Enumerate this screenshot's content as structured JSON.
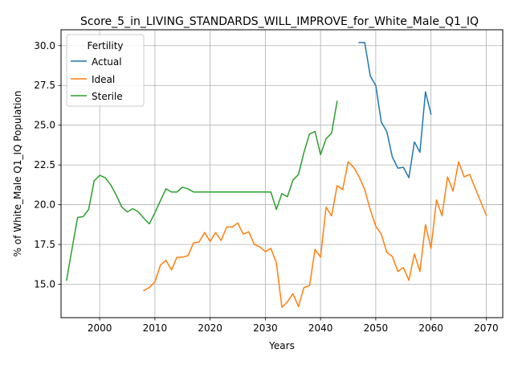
{
  "chart_data": {
    "type": "line",
    "title": "Score_5_in_LIVING_STANDARDS_WILL_IMPROVE_for_White_Male_Q1_IQ",
    "xlabel": "Years",
    "ylabel": "% of White_Male Q1_IQ Population",
    "xlim": [
      1993,
      2073
    ],
    "ylim": [
      12.9,
      31.0
    ],
    "xticks": [
      2000,
      2010,
      2020,
      2030,
      2040,
      2050,
      2060,
      2070
    ],
    "yticks": [
      15.0,
      17.5,
      20.0,
      22.5,
      25.0,
      27.5,
      30.0
    ],
    "ytick_labels": [
      "15.0",
      "17.5",
      "20.0",
      "22.5",
      "25.0",
      "27.5",
      "30.0"
    ],
    "grid": true,
    "legend": {
      "title": "Fertility",
      "placement": "top-left"
    },
    "series": [
      {
        "name": "Actual",
        "color": "#1f77b4",
        "x": [
          2047,
          2048,
          2049,
          2050,
          2051,
          2052,
          2053,
          2054,
          2055,
          2056,
          2057,
          2058,
          2059,
          2060
        ],
        "y": [
          30.2,
          30.2,
          28.1,
          27.5,
          25.2,
          24.6,
          23.0,
          22.3,
          22.35,
          21.7,
          23.95,
          23.3,
          27.1,
          25.7
        ]
      },
      {
        "name": "Ideal",
        "color": "#ff7f0e",
        "x": [
          2008,
          2009,
          2010,
          2011,
          2012,
          2013,
          2014,
          2015,
          2016,
          2017,
          2018,
          2019,
          2020,
          2021,
          2022,
          2023,
          2024,
          2025,
          2026,
          2027,
          2028,
          2029,
          2030,
          2031,
          2032,
          2033,
          2034,
          2035,
          2036,
          2037,
          2038,
          2039,
          2040,
          2041,
          2042,
          2043,
          2044,
          2045,
          2046,
          2047,
          2048,
          2049,
          2050,
          2051,
          2052,
          2053,
          2054,
          2055,
          2056,
          2057,
          2058,
          2059,
          2060,
          2061,
          2062,
          2063,
          2064,
          2065,
          2066,
          2067,
          2068,
          2069,
          2070
        ],
        "y": [
          14.6,
          14.8,
          15.15,
          16.2,
          16.5,
          15.9,
          16.7,
          16.7,
          16.8,
          17.6,
          17.65,
          18.25,
          17.7,
          18.25,
          17.75,
          18.6,
          18.6,
          18.85,
          18.15,
          18.3,
          17.5,
          17.35,
          17.05,
          17.25,
          16.35,
          13.55,
          13.9,
          14.4,
          13.6,
          14.8,
          14.9,
          17.2,
          16.7,
          19.85,
          19.3,
          21.2,
          20.95,
          22.7,
          22.35,
          21.75,
          20.95,
          19.7,
          18.65,
          18.15,
          17.0,
          16.75,
          15.8,
          16.05,
          15.25,
          16.9,
          15.8,
          18.75,
          17.25,
          20.3,
          19.3,
          21.75,
          20.85,
          22.7,
          21.75,
          21.9,
          21.05,
          20.2,
          19.35
        ]
      },
      {
        "name": "Sterile",
        "color": "#2ca02c",
        "x": [
          1994,
          1995,
          1996,
          1997,
          1998,
          1999,
          2000,
          2001,
          2002,
          2003,
          2004,
          2005,
          2006,
          2007,
          2008,
          2009,
          2010,
          2011,
          2012,
          2013,
          2014,
          2015,
          2016,
          2017,
          2018,
          2019,
          2020,
          2021,
          2022,
          2023,
          2024,
          2025,
          2026,
          2027,
          2028,
          2029,
          2030,
          2031,
          2032,
          2033,
          2034,
          2035,
          2036,
          2037,
          2038,
          2039,
          2040,
          2041,
          2042,
          2043
        ],
        "y": [
          15.25,
          17.25,
          19.2,
          19.25,
          19.7,
          21.5,
          21.85,
          21.7,
          21.25,
          20.6,
          19.85,
          19.55,
          19.75,
          19.55,
          19.15,
          18.8,
          19.5,
          20.25,
          21.0,
          20.8,
          20.8,
          21.1,
          21.0,
          20.8,
          20.8,
          20.8,
          20.8,
          20.8,
          20.8,
          20.8,
          20.8,
          20.8,
          20.8,
          20.8,
          20.8,
          20.8,
          20.8,
          20.8,
          19.7,
          20.7,
          20.5,
          21.55,
          21.9,
          23.3,
          24.45,
          24.6,
          23.15,
          24.15,
          24.5,
          26.5
        ]
      }
    ]
  }
}
